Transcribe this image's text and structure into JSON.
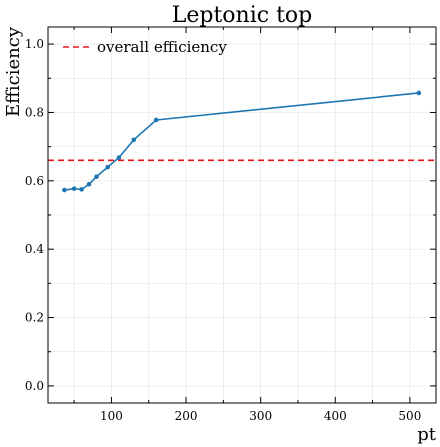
{
  "chart_data": {
    "type": "line",
    "title": "Leptonic top",
    "xlabel": "pt",
    "ylabel": "Efficiency",
    "xlim": [
      15,
      535
    ],
    "ylim": [
      -0.05,
      1.05
    ],
    "xticks": [
      100,
      200,
      300,
      400,
      500
    ],
    "yticks": [
      0.0,
      0.2,
      0.4,
      0.6,
      0.8,
      1.0
    ],
    "xtick_labels": [
      "100",
      "200",
      "300",
      "400",
      "500"
    ],
    "ytick_labels": [
      "0.0",
      "0.2",
      "0.4",
      "0.6",
      "0.8",
      "1.0"
    ],
    "grid": true,
    "legend_position": "top-left",
    "series": [
      {
        "color": "#1f77b4",
        "marker": "dot",
        "x": [
          37,
          50,
          60,
          70,
          80,
          95,
          110,
          130,
          160,
          512
        ],
        "y": [
          0.573,
          0.577,
          0.575,
          0.59,
          0.612,
          0.64,
          0.668,
          0.72,
          0.778,
          0.857
        ]
      }
    ],
    "reference_lines": [
      {
        "name": "overall efficiency",
        "y": 0.66,
        "color": "#e8141c",
        "style": "dashed"
      }
    ]
  }
}
